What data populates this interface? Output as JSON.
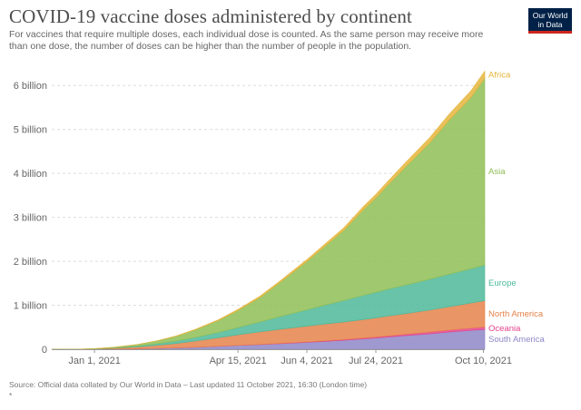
{
  "header": {
    "title": "COVID-19 vaccine doses administered by continent",
    "subtitle": "For vaccines that require multiple doses, each individual dose is counted. As the same person may receive more than one dose, the number of doses can be higher than the number of people in the population.",
    "logo_line1": "Our World",
    "logo_line2": "in Data",
    "logo_color": "#002147",
    "logo_accent": "#ce261e"
  },
  "footer": {
    "source": "Source: Official data collated by Our World in Data – Last updated 11 October 2021, 16:30 (London time)",
    "footnote": "*"
  },
  "chart_data": {
    "type": "area",
    "stacked": true,
    "title": "COVID-19 vaccine doses administered by continent",
    "xlabel": "",
    "ylabel": "",
    "x": [
      "2020-12-01",
      "2020-12-20",
      "2021-01-01",
      "2021-01-15",
      "2021-02-01",
      "2021-02-15",
      "2021-03-01",
      "2021-03-15",
      "2021-04-01",
      "2021-04-15",
      "2021-05-01",
      "2021-05-15",
      "2021-06-04",
      "2021-06-15",
      "2021-07-01",
      "2021-07-15",
      "2021-07-24",
      "2021-08-01",
      "2021-08-15",
      "2021-09-01",
      "2021-09-15",
      "2021-10-01",
      "2021-10-11"
    ],
    "x_ticks": [
      "2021-01-01",
      "2021-04-15",
      "2021-06-04",
      "2021-07-24",
      "2021-10-10"
    ],
    "x_tick_labels": [
      "Jan 1, 2021",
      "Apr 15, 2021",
      "Jun 4, 2021",
      "Jul 24, 2021",
      "Oct 10, 2021"
    ],
    "y_ticks": [
      0,
      1000000000,
      2000000000,
      3000000000,
      4000000000,
      5000000000,
      6000000000
    ],
    "y_tick_labels": [
      "0",
      "1 billion",
      "2 billion",
      "3 billion",
      "4 billion",
      "5 billion",
      "6 billion"
    ],
    "ylim": [
      0,
      6500000000
    ],
    "grid": "horizontal dotted",
    "legend": "labels at right end of series",
    "series": [
      {
        "name": "South America",
        "color": "#8e87c8",
        "values": [
          0,
          0,
          1000000,
          4000000,
          10000000,
          18000000,
          30000000,
          45000000,
          65000000,
          85000000,
          105000000,
          125000000,
          155000000,
          175000000,
          205000000,
          235000000,
          255000000,
          275000000,
          310000000,
          350000000,
          390000000,
          430000000,
          450000000
        ]
      },
      {
        "name": "Oceania",
        "color": "#e4448d",
        "values": [
          0,
          0,
          0,
          0,
          0,
          0,
          100000,
          1000000,
          2000000,
          3000000,
          5000000,
          7000000,
          10000000,
          12000000,
          15000000,
          20000000,
          23000000,
          26000000,
          32000000,
          40000000,
          45000000,
          50000000,
          55000000
        ]
      },
      {
        "name": "North America",
        "color": "#e6824a",
        "values": [
          0,
          2000000,
          8000000,
          20000000,
          42000000,
          70000000,
          100000000,
          140000000,
          195000000,
          240000000,
          285000000,
          320000000,
          360000000,
          380000000,
          400000000,
          420000000,
          435000000,
          450000000,
          470000000,
          500000000,
          530000000,
          570000000,
          600000000
        ]
      },
      {
        "name": "Europe",
        "color": "#4db99a",
        "values": [
          0,
          0,
          2000000,
          8000000,
          20000000,
          35000000,
          55000000,
          80000000,
          120000000,
          165000000,
          225000000,
          285000000,
          370000000,
          420000000,
          490000000,
          550000000,
          580000000,
          610000000,
          650000000,
          700000000,
          740000000,
          780000000,
          810000000
        ]
      },
      {
        "name": "Asia",
        "color": "#8fbe55",
        "values": [
          0,
          0,
          3000000,
          12000000,
          35000000,
          65000000,
          110000000,
          175000000,
          275000000,
          390000000,
          560000000,
          770000000,
          1100000000,
          1300000000,
          1600000000,
          1950000000,
          2150000000,
          2350000000,
          2700000000,
          3100000000,
          3500000000,
          3900000000,
          4250000000
        ]
      },
      {
        "name": "Africa",
        "color": "#e5b53c",
        "values": [
          0,
          0,
          0,
          200000,
          1000000,
          3000000,
          6000000,
          10000000,
          16000000,
          22000000,
          28000000,
          34000000,
          42000000,
          48000000,
          58000000,
          70000000,
          78000000,
          85000000,
          100000000,
          120000000,
          135000000,
          150000000,
          160000000
        ]
      }
    ]
  }
}
